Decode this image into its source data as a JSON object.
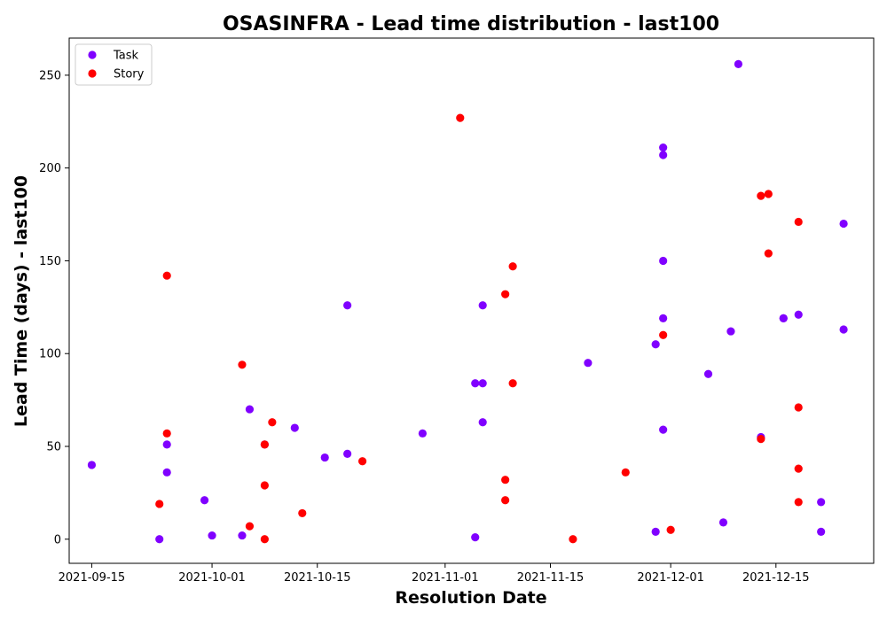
{
  "chart_data": {
    "type": "scatter",
    "title": "OSASINFRA - Lead time distribution - last100",
    "xlabel": "Resolution Date",
    "ylabel": "Lead Time (days) - last100",
    "x_type": "date",
    "xlim": [
      "2021-09-12",
      "2021-12-28"
    ],
    "ylim": [
      -13,
      270
    ],
    "x_ticks": [
      "2021-09-15",
      "2021-10-01",
      "2021-10-15",
      "2021-11-01",
      "2021-11-15",
      "2021-12-01",
      "2021-12-15"
    ],
    "y_ticks": [
      0,
      50,
      100,
      150,
      200,
      250
    ],
    "grid": false,
    "legend_position": "top-left",
    "series": [
      {
        "name": "Task",
        "color": "#8000ff",
        "points": [
          {
            "x": "2021-09-15",
            "y": 40
          },
          {
            "x": "2021-09-24",
            "y": 0
          },
          {
            "x": "2021-09-25",
            "y": 36
          },
          {
            "x": "2021-09-25",
            "y": 51
          },
          {
            "x": "2021-09-30",
            "y": 21
          },
          {
            "x": "2021-10-01",
            "y": 2
          },
          {
            "x": "2021-10-05",
            "y": 2
          },
          {
            "x": "2021-10-06",
            "y": 70
          },
          {
            "x": "2021-10-08",
            "y": 51
          },
          {
            "x": "2021-10-12",
            "y": 60
          },
          {
            "x": "2021-10-16",
            "y": 44
          },
          {
            "x": "2021-10-19",
            "y": 126
          },
          {
            "x": "2021-10-19",
            "y": 46
          },
          {
            "x": "2021-10-29",
            "y": 57
          },
          {
            "x": "2021-11-05",
            "y": 84
          },
          {
            "x": "2021-11-05",
            "y": 1
          },
          {
            "x": "2021-11-06",
            "y": 84
          },
          {
            "x": "2021-11-06",
            "y": 126
          },
          {
            "x": "2021-11-06",
            "y": 63
          },
          {
            "x": "2021-11-20",
            "y": 95
          },
          {
            "x": "2021-11-29",
            "y": 105
          },
          {
            "x": "2021-11-29",
            "y": 4
          },
          {
            "x": "2021-11-30",
            "y": 211
          },
          {
            "x": "2021-11-30",
            "y": 207
          },
          {
            "x": "2021-11-30",
            "y": 150
          },
          {
            "x": "2021-11-30",
            "y": 119
          },
          {
            "x": "2021-11-30",
            "y": 59
          },
          {
            "x": "2021-12-06",
            "y": 89
          },
          {
            "x": "2021-12-08",
            "y": 9
          },
          {
            "x": "2021-12-09",
            "y": 112
          },
          {
            "x": "2021-12-10",
            "y": 256
          },
          {
            "x": "2021-12-13",
            "y": 55
          },
          {
            "x": "2021-12-16",
            "y": 119
          },
          {
            "x": "2021-12-16",
            "y": 119
          },
          {
            "x": "2021-12-18",
            "y": 121
          },
          {
            "x": "2021-12-21",
            "y": 20
          },
          {
            "x": "2021-12-21",
            "y": 4
          },
          {
            "x": "2021-12-24",
            "y": 170
          },
          {
            "x": "2021-12-24",
            "y": 113
          }
        ]
      },
      {
        "name": "Story",
        "color": "#ff0000",
        "points": [
          {
            "x": "2021-09-24",
            "y": 19
          },
          {
            "x": "2021-09-25",
            "y": 142
          },
          {
            "x": "2021-09-25",
            "y": 57
          },
          {
            "x": "2021-10-05",
            "y": 94
          },
          {
            "x": "2021-10-06",
            "y": 7
          },
          {
            "x": "2021-10-08",
            "y": 51
          },
          {
            "x": "2021-10-08",
            "y": 29
          },
          {
            "x": "2021-10-08",
            "y": 0
          },
          {
            "x": "2021-10-09",
            "y": 63
          },
          {
            "x": "2021-10-13",
            "y": 14
          },
          {
            "x": "2021-10-21",
            "y": 42
          },
          {
            "x": "2021-11-03",
            "y": 227
          },
          {
            "x": "2021-11-09",
            "y": 132
          },
          {
            "x": "2021-11-09",
            "y": 32
          },
          {
            "x": "2021-11-09",
            "y": 21
          },
          {
            "x": "2021-11-10",
            "y": 147
          },
          {
            "x": "2021-11-10",
            "y": 84
          },
          {
            "x": "2021-11-18",
            "y": 0
          },
          {
            "x": "2021-11-25",
            "y": 36
          },
          {
            "x": "2021-11-30",
            "y": 110
          },
          {
            "x": "2021-12-01",
            "y": 5
          },
          {
            "x": "2021-12-13",
            "y": 185
          },
          {
            "x": "2021-12-13",
            "y": 54
          },
          {
            "x": "2021-12-14",
            "y": 186
          },
          {
            "x": "2021-12-14",
            "y": 154
          },
          {
            "x": "2021-12-18",
            "y": 171
          },
          {
            "x": "2021-12-18",
            "y": 71
          },
          {
            "x": "2021-12-18",
            "y": 38
          },
          {
            "x": "2021-12-18",
            "y": 20
          }
        ]
      }
    ]
  }
}
